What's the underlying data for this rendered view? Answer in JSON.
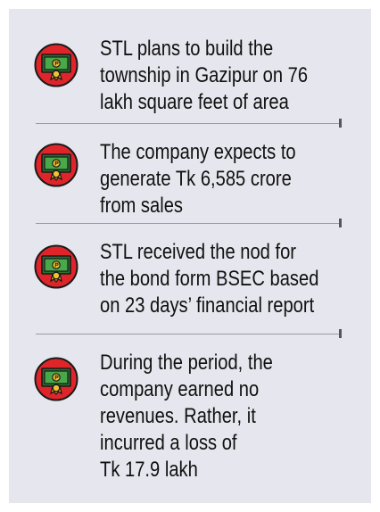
{
  "items": [
    {
      "icon": "money-bill-icon",
      "lines": [
        "STL plans to build the",
        "township in Gazipur on 76",
        "lakh square feet of area"
      ]
    },
    {
      "icon": "money-bill-icon",
      "lines": [
        "The company expects to",
        "generate Tk 6,585 crore",
        "from sales"
      ]
    },
    {
      "icon": "money-bill-icon",
      "lines": [
        "STL received the nod for",
        "the bond form BSEC based",
        "on 23 days’ financial report"
      ]
    },
    {
      "icon": "money-bill-icon",
      "lines": [
        "During the period, the",
        "company earned no",
        "revenues. Rather, it",
        "incurred a loss of",
        "Tk 17.9 lakh"
      ]
    }
  ],
  "colors": {
    "panel": "#e6e6ee",
    "text": "#111111",
    "icon_circle": "#e0252a",
    "bill": "#49a84a",
    "bill_dark": "#2a6f2f",
    "coin": "#f2c230",
    "divider": "#9a9aa4"
  }
}
